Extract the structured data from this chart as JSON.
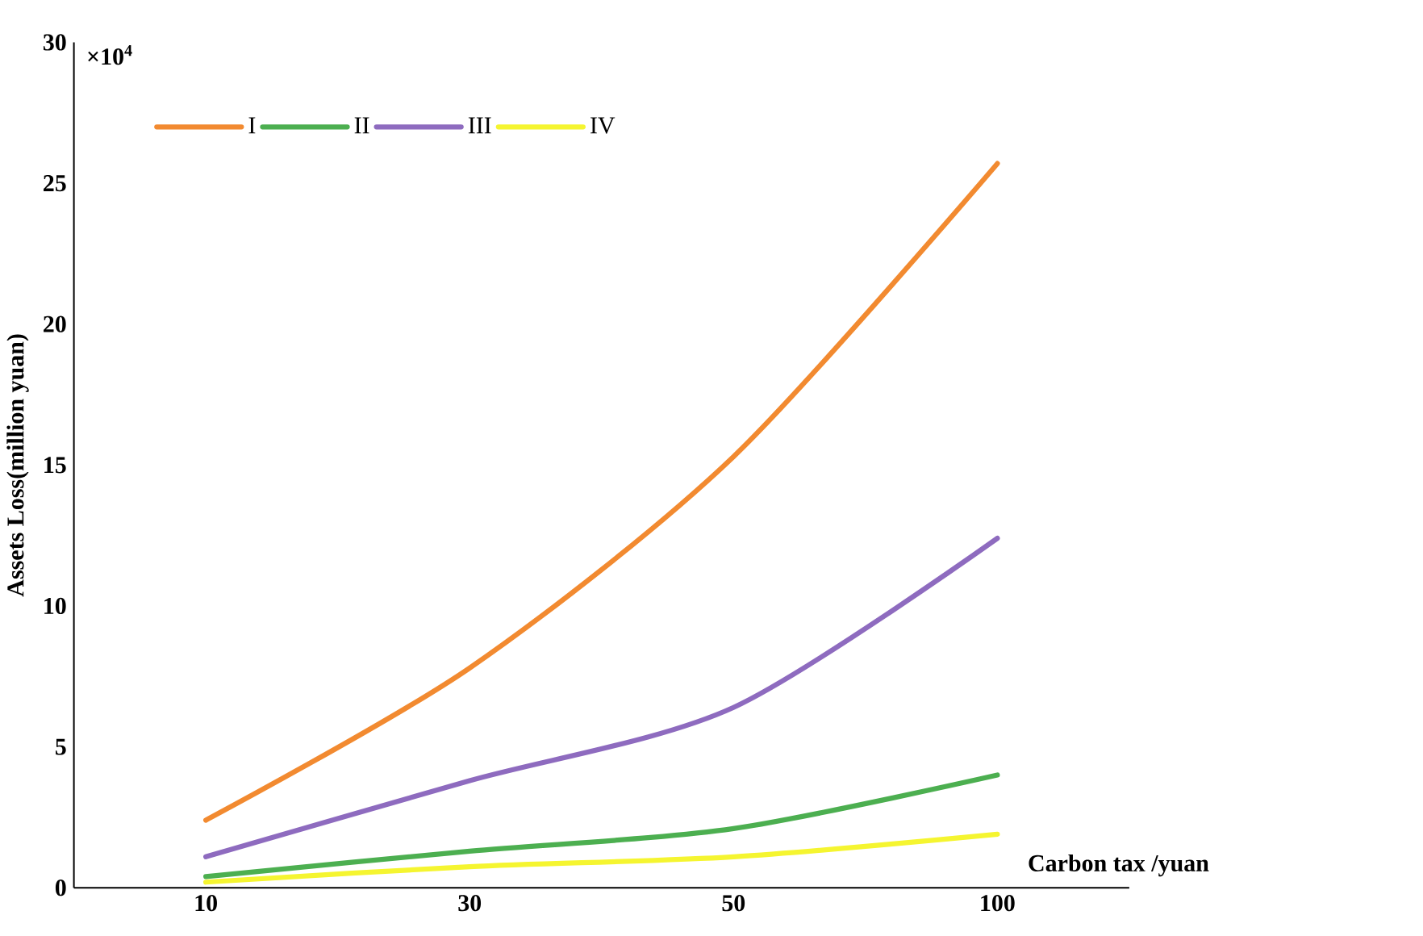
{
  "chart_data": {
    "type": "line",
    "ylabel": "Assets Loss(million yuan)",
    "xlabel": "Carbon tax /yuan",
    "annotations": [
      "×10$^{4}$"
    ],
    "categories": [
      "10",
      "30",
      "50",
      "100"
    ],
    "series": [
      {
        "name": "I",
        "color": "#f28a30",
        "values": [
          2.4,
          7.8,
          15.3,
          25.7
        ]
      },
      {
        "name": "II",
        "color": "#4caf50",
        "values": [
          0.4,
          1.3,
          2.1,
          4.0
        ]
      },
      {
        "name": "III",
        "color": "#8e6bbf",
        "values": [
          1.1,
          3.8,
          6.4,
          12.4
        ]
      },
      {
        "name": "IV",
        "color": "#f5f530",
        "values": [
          0.2,
          0.75,
          1.1,
          1.9
        ]
      }
    ],
    "ylim": [
      0,
      30
    ],
    "yticks": [
      0,
      5,
      10,
      15,
      20,
      25,
      30
    ],
    "legend": "top left",
    "marker": "none",
    "line_style": "solid",
    "grid": false
  }
}
